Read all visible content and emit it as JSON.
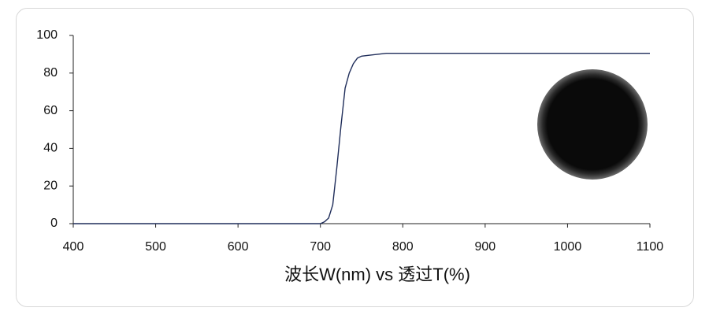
{
  "chart_data": {
    "type": "line",
    "xlabel": "波长W(nm) vs 透过T(%)",
    "x": [
      400,
      500,
      600,
      700,
      705,
      710,
      715,
      720,
      725,
      730,
      735,
      740,
      745,
      750,
      760,
      780,
      800,
      900,
      1000,
      1100
    ],
    "values": [
      0,
      0,
      0,
      0,
      1,
      3,
      10,
      30,
      52,
      72,
      80,
      85,
      88,
      89,
      89.5,
      90.5,
      90.5,
      90.5,
      90.5,
      90.5
    ],
    "color": "#1f2d5a",
    "xlim": [
      400,
      1100
    ],
    "xticks": [
      400,
      500,
      600,
      700,
      800,
      900,
      1000,
      1100
    ],
    "ylim": [
      0,
      100
    ],
    "yticks": [
      0,
      20,
      40,
      60,
      80,
      100
    ],
    "grid": false
  }
}
